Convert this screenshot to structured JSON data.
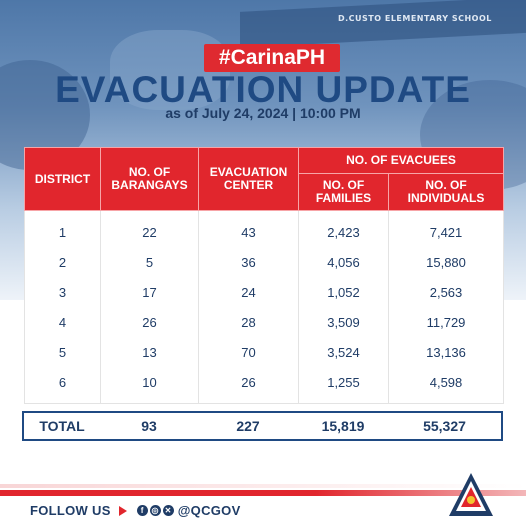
{
  "header": {
    "hashtag": "#CarinaPH",
    "title": "EVACUATION UPDATE",
    "subtitle": "as of July 24, 2024  |  10:00 PM",
    "background_sign": "D.CUSTO ELEMENTARY SCHOOL"
  },
  "table": {
    "columns": {
      "district": "DISTRICT",
      "barangays": "NO. OF BARANGAYS",
      "evacuation_center": "EVACUATION CENTER",
      "evacuees_group": "NO. OF EVACUEES",
      "families": "NO. OF FAMILIES",
      "individuals": "NO. OF INDIVIDUALS"
    },
    "rows": [
      {
        "district": "1",
        "barangays": "22",
        "center": "43",
        "families": "2,423",
        "individuals": "7,421"
      },
      {
        "district": "2",
        "barangays": "5",
        "center": "36",
        "families": "4,056",
        "individuals": "15,880"
      },
      {
        "district": "3",
        "barangays": "17",
        "center": "24",
        "families": "1,052",
        "individuals": "2,563"
      },
      {
        "district": "4",
        "barangays": "26",
        "center": "28",
        "families": "3,509",
        "individuals": "11,729"
      },
      {
        "district": "5",
        "barangays": "13",
        "center": "70",
        "families": "3,524",
        "individuals": "13,136"
      },
      {
        "district": "6",
        "barangays": "10",
        "center": "26",
        "families": "1,255",
        "individuals": "4,598"
      }
    ],
    "total": {
      "label": "TOTAL",
      "barangays": "93",
      "center": "227",
      "families": "15,819",
      "individuals": "55,327"
    }
  },
  "footer": {
    "follow_label": "FOLLOW US",
    "social_icons": [
      "facebook-icon",
      "instagram-icon",
      "x-icon"
    ],
    "handle": "@QCGOV",
    "seal_text": "PILIPINAS"
  },
  "colors": {
    "accent_red": "#e1262d",
    "navy": "#1f4a83",
    "text_dark": "#1f3c66"
  }
}
